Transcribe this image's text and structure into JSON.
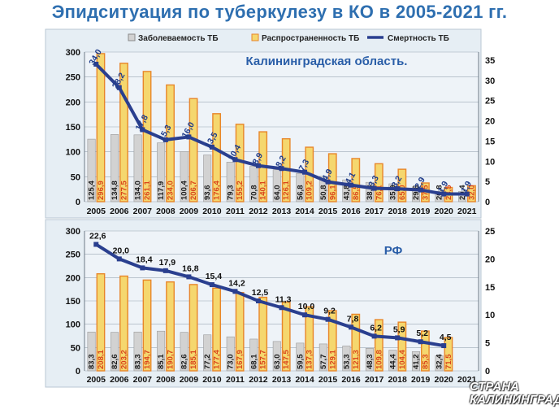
{
  "title": "Эпидситуация по туберкулезу в КО в 2005-2021 гг.",
  "watermark": {
    "line1": "СТРАНА",
    "line2": "КАЛИНИНГРАД"
  },
  "colors": {
    "incidence": "#d2d2d2",
    "prevalence": "#f5d76e",
    "prevalence_border": "#e8862a",
    "mortality": "#2a3f8f",
    "panel": "#e6eef4",
    "title": "#2e6fb0"
  },
  "chart_data": [
    {
      "type": "bar",
      "name_label": "Калининградская область.",
      "legend": [
        "Заболеваемость ТБ",
        "Распространенность ТБ",
        "Смертность ТБ"
      ],
      "categories": [
        "2005",
        "2006",
        "2007",
        "2008",
        "2009",
        "2010",
        "2011",
        "2012",
        "2013",
        "2014",
        "2015",
        "2016",
        "2017",
        "2018",
        "2019",
        "2020",
        "2021"
      ],
      "ylim_left": [
        0,
        300
      ],
      "yticks_left": [
        0,
        50,
        100,
        150,
        200,
        250,
        300
      ],
      "ylim_right": [
        0,
        37
      ],
      "yticks_right": [
        0,
        5,
        10,
        15,
        20,
        25,
        30,
        35
      ],
      "series": [
        {
          "name": "Заболеваемость ТБ",
          "axis": "left",
          "kind": "bar",
          "values": [
            125.4,
            134.8,
            134.0,
            117.9,
            100.4,
            93.6,
            79.3,
            70.8,
            64.0,
            56.8,
            50.8,
            43.8,
            38.8,
            35.9,
            29.6,
            20.8,
            20.4
          ],
          "labels": [
            "125,4",
            "134,8",
            "134,0",
            "117,9",
            "100,4",
            "93,6",
            "79,3",
            "70,8",
            "64,0",
            "56,8",
            "50,8",
            "43,8",
            "38,8",
            "35,9",
            "29,6",
            "20,8",
            "20,4"
          ]
        },
        {
          "name": "Распространенность ТБ",
          "axis": "left",
          "kind": "bar",
          "values": [
            296.9,
            277.5,
            261.1,
            234.0,
            206.7,
            176.4,
            155.2,
            140.1,
            126.1,
            109.2,
            96.1,
            86.5,
            76.1,
            65.0,
            37.5,
            28.5,
            32.0
          ],
          "labels": [
            "296,9",
            "277,5",
            "261,1",
            "234,0",
            "206,7",
            "176,4",
            "155,2",
            "140,1",
            "126,1",
            "109,2",
            "96,1",
            "86,5",
            "76,1",
            "65,0",
            "37,5",
            "28,5",
            "32,0"
          ]
        },
        {
          "name": "Смертность ТБ",
          "axis": "right",
          "kind": "line",
          "values": [
            34.0,
            28.2,
            17.8,
            15.3,
            16.0,
            13.5,
            10.4,
            8.9,
            8.2,
            7.3,
            4.9,
            4.1,
            3.3,
            3.2,
            2.9,
            1.9,
            1.9
          ],
          "labels": [
            "34,0",
            "28,2",
            "17,8",
            "15,3",
            "16,0",
            "13,5",
            "10,4",
            "8,9",
            "8,2",
            "7,3",
            "4,9",
            "4,1",
            "3,3",
            "3,2",
            "2,9",
            "1,9",
            "1,9"
          ]
        }
      ]
    },
    {
      "type": "bar",
      "name_label": "РФ",
      "categories": [
        "2005",
        "2006",
        "2007",
        "2008",
        "2009",
        "2010",
        "2011",
        "2012",
        "2013",
        "2014",
        "2015",
        "2016",
        "2017",
        "2018",
        "2019",
        "2020",
        "2021"
      ],
      "ylim_left": [
        0,
        300
      ],
      "yticks_left": [
        0,
        50,
        100,
        150,
        200,
        250,
        300
      ],
      "ylim_right": [
        0,
        25
      ],
      "yticks_right": [
        0,
        5,
        10,
        15,
        20,
        25
      ],
      "series": [
        {
          "name": "Заболеваемость ТБ",
          "axis": "left",
          "kind": "bar",
          "values": [
            83.3,
            82.6,
            83.3,
            85.1,
            82.6,
            77.2,
            73.0,
            68.1,
            63.0,
            59.5,
            57.7,
            53.3,
            48.3,
            44.4,
            41.2,
            32.4,
            null
          ],
          "labels": [
            "83,3",
            "82,6",
            "83,3",
            "85,1",
            "82,6",
            "77,2",
            "73,0",
            "68,1",
            "63,0",
            "59,5",
            "57,7",
            "53,3",
            "48,3",
            "44,4",
            "41,2",
            "32,4",
            ""
          ]
        },
        {
          "name": "Распространенность ТБ",
          "axis": "left",
          "kind": "bar",
          "values": [
            208.1,
            203.2,
            194.7,
            190.7,
            185.1,
            177.4,
            167.9,
            157.7,
            147.5,
            137.3,
            129.1,
            121.3,
            109.8,
            104.4,
            85.3,
            71.5,
            null
          ],
          "labels": [
            "208,1",
            "203,2",
            "194,7",
            "190,7",
            "185,1",
            "177,4",
            "167,9",
            "157,7",
            "147,5",
            "137,3",
            "129,1",
            "121,3",
            "109,8",
            "104,4",
            "85,3",
            "71,5",
            ""
          ]
        },
        {
          "name": "Смертность ТБ",
          "axis": "right",
          "kind": "line",
          "values": [
            22.6,
            20.0,
            18.4,
            17.9,
            16.8,
            15.4,
            14.2,
            12.5,
            11.3,
            10.0,
            9.2,
            7.8,
            6.2,
            5.9,
            5.2,
            4.5,
            null
          ],
          "labels": [
            "22,6",
            "20,0",
            "18,4",
            "17,9",
            "16,8",
            "15,4",
            "14,2",
            "12,5",
            "11,3",
            "10,0",
            "9,2",
            "7,8",
            "6,2",
            "5,9",
            "5,2",
            "4,5",
            ""
          ]
        }
      ]
    }
  ]
}
